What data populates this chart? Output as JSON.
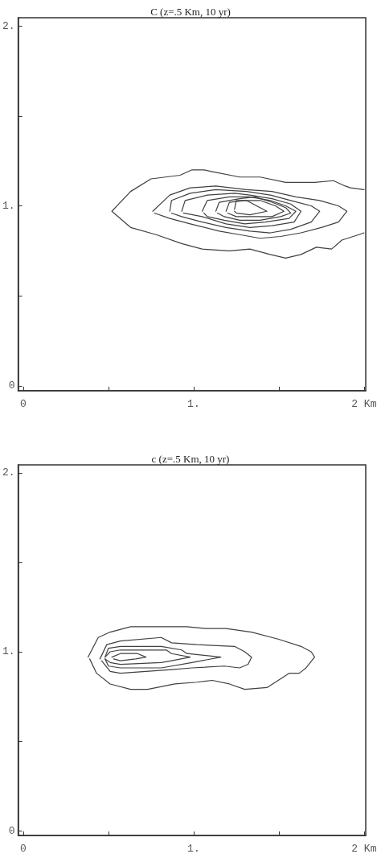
{
  "chart_data": [
    {
      "type": "line",
      "title": "C (z=.5 Km, 10 yr)",
      "marker": "none",
      "line_style": "solid",
      "grid": false,
      "xlim": [
        -0.03,
        2.01
      ],
      "ylim": [
        -0.027,
        2.045
      ],
      "xticks": [
        {
          "value": 0,
          "label": "0"
        },
        {
          "value": 0.5,
          "label": null
        },
        {
          "value": 1,
          "label": "1."
        },
        {
          "value": 1.5,
          "label": null
        },
        {
          "value": 2,
          "label": "2 Km"
        }
      ],
      "yticks": [
        {
          "value": 0,
          "label": "0"
        },
        {
          "value": 0.5,
          "label": null
        },
        {
          "value": 1,
          "label": "1."
        },
        {
          "value": 1.5,
          "label": null
        },
        {
          "value": 2,
          "label": "2."
        }
      ],
      "series": [
        {
          "color": "#404040",
          "x": [
            2.0,
            1.92,
            1.89,
            1.82,
            1.71,
            1.54,
            1.39,
            1.27,
            1.11,
            1.06,
            0.99,
            0.92,
            0.75,
            0.63,
            0.52,
            0.63,
            0.78,
            0.93,
            1.05,
            1.21,
            1.33,
            1.45,
            1.54,
            1.63,
            1.72,
            1.81,
            1.87,
            1.97,
            2.0
          ],
          "values": [
            1.09,
            1.1,
            1.11,
            1.14,
            1.13,
            1.13,
            1.16,
            1.16,
            1.19,
            1.2,
            1.2,
            1.17,
            1.15,
            1.08,
            0.97,
            0.88,
            0.84,
            0.79,
            0.76,
            0.75,
            0.76,
            0.73,
            0.71,
            0.73,
            0.77,
            0.76,
            0.81,
            0.84,
            0.85
          ]
        },
        {
          "color": "#404040",
          "x": [
            0.76,
            0.86,
            0.98,
            1.13,
            1.31,
            1.46,
            1.6,
            1.74,
            1.85,
            1.9,
            1.85,
            1.75,
            1.63,
            1.51,
            1.39,
            1.27,
            1.15,
            0.98,
            0.86,
            0.77
          ],
          "values": [
            0.97,
            1.06,
            1.1,
            1.11,
            1.09,
            1.08,
            1.05,
            1.03,
            1.0,
            0.97,
            0.91,
            0.88,
            0.85,
            0.83,
            0.82,
            0.84,
            0.86,
            0.9,
            0.93,
            0.96
          ]
        },
        {
          "color": "#404040",
          "x": [
            0.86,
            0.87,
            0.98,
            1.13,
            1.31,
            1.45,
            1.57,
            1.69,
            1.74,
            1.69,
            1.57,
            1.45,
            1.33,
            1.19,
            1.05,
            0.93,
            0.87
          ],
          "values": [
            0.97,
            1.03,
            1.07,
            1.09,
            1.08,
            1.06,
            1.03,
            1.0,
            0.97,
            0.91,
            0.87,
            0.85,
            0.86,
            0.88,
            0.91,
            0.94,
            0.96
          ]
        },
        {
          "color": "#404040",
          "x": [
            0.93,
            0.95,
            1.08,
            1.24,
            1.33,
            1.46,
            1.57,
            1.63,
            1.59,
            1.46,
            1.33,
            1.19,
            1.05,
            0.94
          ],
          "values": [
            0.97,
            1.03,
            1.06,
            1.07,
            1.06,
            1.04,
            1.01,
            0.97,
            0.91,
            0.89,
            0.88,
            0.9,
            0.94,
            0.96
          ]
        },
        {
          "color": "#404040",
          "x": [
            1.05,
            1.08,
            1.21,
            1.33,
            1.45,
            1.54,
            1.6,
            1.56,
            1.42,
            1.3,
            1.18,
            1.08,
            1.06
          ],
          "values": [
            0.97,
            1.03,
            1.05,
            1.05,
            1.03,
            1.0,
            0.97,
            0.93,
            0.91,
            0.9,
            0.92,
            0.94,
            0.96
          ]
        },
        {
          "color": "#404040",
          "x": [
            1.13,
            1.15,
            1.27,
            1.36,
            1.46,
            1.54,
            1.57,
            1.51,
            1.39,
            1.27,
            1.18,
            1.14
          ],
          "values": [
            0.97,
            1.02,
            1.04,
            1.05,
            1.02,
            0.99,
            0.96,
            0.94,
            0.92,
            0.92,
            0.94,
            0.96
          ]
        },
        {
          "color": "#404040",
          "x": [
            1.19,
            1.21,
            1.3,
            1.39,
            1.48,
            1.53,
            1.46,
            1.36,
            1.25,
            1.2
          ],
          "values": [
            0.97,
            1.02,
            1.03,
            1.03,
            1.0,
            0.97,
            0.94,
            0.94,
            0.94,
            0.96
          ]
        },
        {
          "color": "#404040",
          "x": [
            1.24,
            1.25,
            1.31,
            1.43,
            1.33,
            1.25,
            1.24
          ],
          "values": [
            0.98,
            1.03,
            1.03,
            0.97,
            0.95,
            0.96,
            0.97
          ]
        }
      ]
    },
    {
      "type": "line",
      "title": "c (z=.5 Km, 10 yr)",
      "marker": "none",
      "line_style": "solid",
      "grid": false,
      "xlim": [
        -0.03,
        2.01
      ],
      "ylim": [
        -0.027,
        2.045
      ],
      "xticks": [
        {
          "value": 0,
          "label": "0"
        },
        {
          "value": 0.5,
          "label": null
        },
        {
          "value": 1,
          "label": "1."
        },
        {
          "value": 1.5,
          "label": null
        },
        {
          "value": 2,
          "label": "2 Km"
        }
      ],
      "yticks": [
        {
          "value": 0,
          "label": "0"
        },
        {
          "value": 0.5,
          "label": null
        },
        {
          "value": 1,
          "label": "1."
        },
        {
          "value": 1.5,
          "label": null
        },
        {
          "value": 2,
          "label": "2."
        }
      ],
      "series": [
        {
          "color": "#404040",
          "x": [
            0.38,
            0.44,
            0.51,
            0.63,
            0.81,
            0.96,
            1.07,
            1.19,
            1.34,
            1.5,
            1.63,
            1.69,
            1.71,
            1.66,
            1.62,
            1.56,
            1.48,
            1.43,
            1.3,
            1.21,
            1.11,
            1.02,
            0.89,
            0.73,
            0.69,
            0.63,
            0.51,
            0.43,
            0.39
          ],
          "values": [
            0.97,
            1.08,
            1.11,
            1.14,
            1.14,
            1.14,
            1.13,
            1.13,
            1.11,
            1.07,
            1.03,
            1.0,
            0.97,
            0.91,
            0.88,
            0.88,
            0.83,
            0.8,
            0.79,
            0.82,
            0.84,
            0.83,
            0.82,
            0.79,
            0.79,
            0.79,
            0.82,
            0.88,
            0.96
          ]
        },
        {
          "color": "#404040",
          "x": [
            0.45,
            0.49,
            0.57,
            0.81,
            0.87,
            1.02,
            1.24,
            1.3,
            1.34,
            1.32,
            1.27,
            1.18,
            0.99,
            0.87,
            0.72,
            0.57,
            0.51,
            0.46
          ],
          "values": [
            0.96,
            1.04,
            1.06,
            1.08,
            1.05,
            1.04,
            1.03,
            1.0,
            0.97,
            0.93,
            0.91,
            0.92,
            0.91,
            0.9,
            0.89,
            0.88,
            0.89,
            0.95
          ]
        },
        {
          "color": "#404040",
          "x": [
            0.48,
            0.5,
            0.57,
            0.81,
            0.93,
            0.96,
            1.16,
            0.99,
            0.81,
            0.57,
            0.5,
            0.48
          ],
          "values": [
            0.97,
            1.02,
            1.03,
            1.03,
            1.01,
            0.99,
            0.97,
            0.94,
            0.91,
            0.91,
            0.92,
            0.96
          ]
        },
        {
          "color": "#404040",
          "x": [
            0.48,
            0.51,
            0.57,
            0.84,
            0.87,
            0.98,
            0.87,
            0.81,
            0.57,
            0.51,
            0.48
          ],
          "values": [
            0.97,
            1.0,
            1.01,
            1.01,
            0.99,
            0.97,
            0.95,
            0.94,
            0.93,
            0.94,
            0.96
          ]
        },
        {
          "color": "#404040",
          "x": [
            0.52,
            0.57,
            0.67,
            0.72,
            0.66,
            0.57,
            0.53
          ],
          "values": [
            0.97,
            0.99,
            0.99,
            0.97,
            0.96,
            0.95,
            0.96
          ]
        }
      ]
    }
  ]
}
